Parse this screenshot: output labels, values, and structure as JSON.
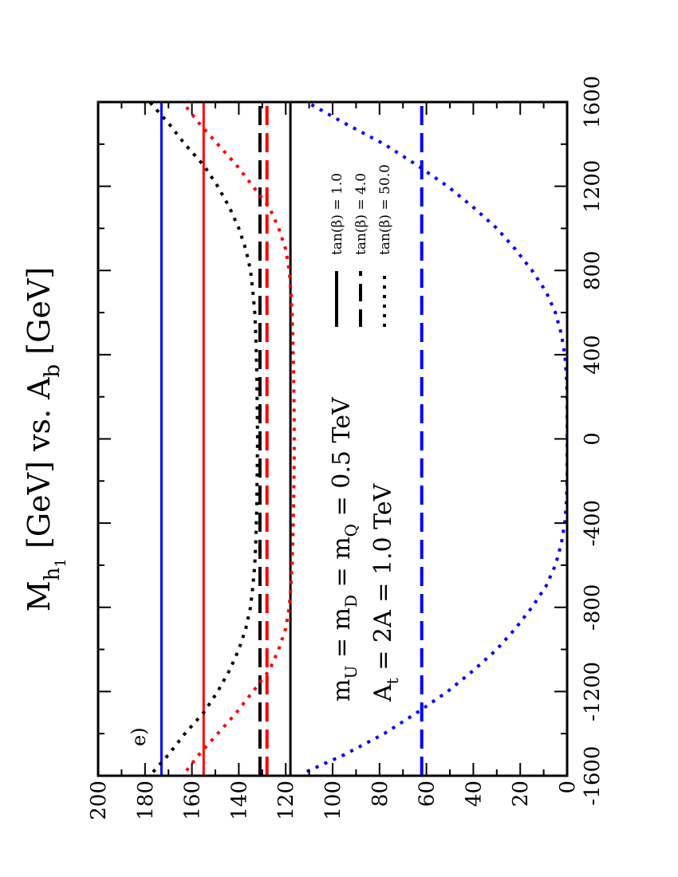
{
  "chart_data": {
    "type": "line",
    "orientation": "rotated-90-ccw",
    "title": {
      "base": "M",
      "sub": "h",
      "subsub": "1",
      "rest": "  [GeV] vs. A",
      "rest_sub": "b",
      "rest_tail": " [GeV]"
    },
    "panel_label": "e)",
    "x_axis": {
      "range": [
        -1600,
        1600
      ],
      "ticks": [
        -1600,
        -1200,
        -800,
        -400,
        0,
        400,
        800,
        1200,
        1600
      ]
    },
    "y_axis": {
      "range": [
        0,
        200
      ],
      "ticks": [
        0,
        20,
        40,
        60,
        80,
        100,
        120,
        140,
        160,
        180,
        200
      ]
    },
    "annotations": {
      "line1": {
        "a": "m",
        "a_sub": "U",
        "b": " = m",
        "b_sub": "D",
        "c": " = m",
        "c_sub": "Q",
        "d": " = 0.5 TeV"
      },
      "line2": {
        "a": "A",
        "a_sub": "t",
        "b": " = 2A  = 1.0 TeV"
      }
    },
    "legend": {
      "placement": "top-right",
      "entries": [
        {
          "label": "tan(β) = 1.0",
          "style": "solid"
        },
        {
          "label": "tan(β) = 4.0",
          "style": "dashed"
        },
        {
          "label": "tan(β) = 50.0",
          "style": "dotted"
        }
      ]
    },
    "colors": {
      "black": "#000000",
      "red": "#ff0000",
      "blue": "#0000ff"
    },
    "series": [
      {
        "color": "#0000ff",
        "style": "solid",
        "x": [
          -1600,
          1600
        ],
        "y": [
          173,
          173
        ]
      },
      {
        "color": "#ff0000",
        "style": "solid",
        "x": [
          -1600,
          1600
        ],
        "y": [
          155,
          155
        ]
      },
      {
        "color": "#000000",
        "style": "dashed",
        "x": [
          -1600,
          1600
        ],
        "y": [
          131,
          131
        ]
      },
      {
        "color": "#ff0000",
        "style": "dashed",
        "x": [
          -1600,
          1600
        ],
        "y": [
          128,
          128
        ]
      },
      {
        "color": "#000000",
        "style": "solid",
        "x": [
          -1600,
          1600
        ],
        "y": [
          118,
          118
        ]
      },
      {
        "color": "#0000ff",
        "style": "dashed",
        "x": [
          -1600,
          1600
        ],
        "y": [
          62,
          62
        ]
      },
      {
        "color": "#000000",
        "style": "dotted",
        "x": [
          -1650,
          -1600,
          -1500,
          -1400,
          -1300,
          -1200,
          -1100,
          -1000,
          -900,
          -800,
          -700,
          -600,
          -500,
          -400,
          -300,
          -200,
          -100,
          0,
          100,
          200,
          300,
          400,
          500,
          600,
          700,
          800,
          900,
          1000,
          1100,
          1200,
          1300,
          1400,
          1500,
          1600
        ],
        "y": [
          182,
          178,
          170,
          163,
          155,
          149,
          144,
          140,
          137,
          135,
          134,
          133.2,
          132.8,
          132.5,
          132.3,
          132.2,
          132.1,
          132,
          132.1,
          132.2,
          132.3,
          132.5,
          132.8,
          133.2,
          134,
          135,
          137,
          140,
          144,
          149,
          155,
          163,
          170,
          178
        ]
      },
      {
        "color": "#ff0000",
        "style": "dotted",
        "x": [
          -1650,
          -1600,
          -1500,
          -1400,
          -1300,
          -1200,
          -1100,
          -1000,
          -900,
          -800,
          -700,
          -600,
          -500,
          -400,
          -300,
          -200,
          -100,
          0,
          100,
          200,
          300,
          400,
          500,
          600,
          700,
          800,
          900,
          1000,
          1100,
          1200,
          1300,
          1400,
          1500,
          1600
        ],
        "y": [
          167,
          164,
          157,
          149,
          141,
          134,
          127,
          123,
          120,
          118.5,
          117.8,
          117.3,
          117,
          116.8,
          116.6,
          116.5,
          116.4,
          116.4,
          116.4,
          116.5,
          116.6,
          116.8,
          117,
          117.3,
          117.8,
          118.5,
          120,
          123,
          127,
          134,
          141,
          149,
          157,
          164
        ]
      },
      {
        "color": "#0000ff",
        "style": "dotted",
        "x": [
          -1580,
          -1500,
          -1400,
          -1300,
          -1200,
          -1100,
          -1000,
          -900,
          -800,
          -700,
          -600,
          -500,
          -400,
          -300,
          -200,
          -100,
          0,
          100,
          200,
          300,
          400,
          500,
          600,
          700,
          800,
          900,
          1000,
          1100,
          1200,
          1300,
          1400,
          1500,
          1600
        ],
        "y": [
          111,
          95,
          78,
          64,
          51,
          40,
          30,
          22,
          15,
          9,
          5,
          2.5,
          1,
          0.3,
          0,
          0,
          0,
          0,
          0,
          0.3,
          1,
          2.5,
          5,
          9,
          15,
          22,
          30,
          40,
          51,
          64,
          78,
          95,
          111
        ]
      }
    ]
  }
}
